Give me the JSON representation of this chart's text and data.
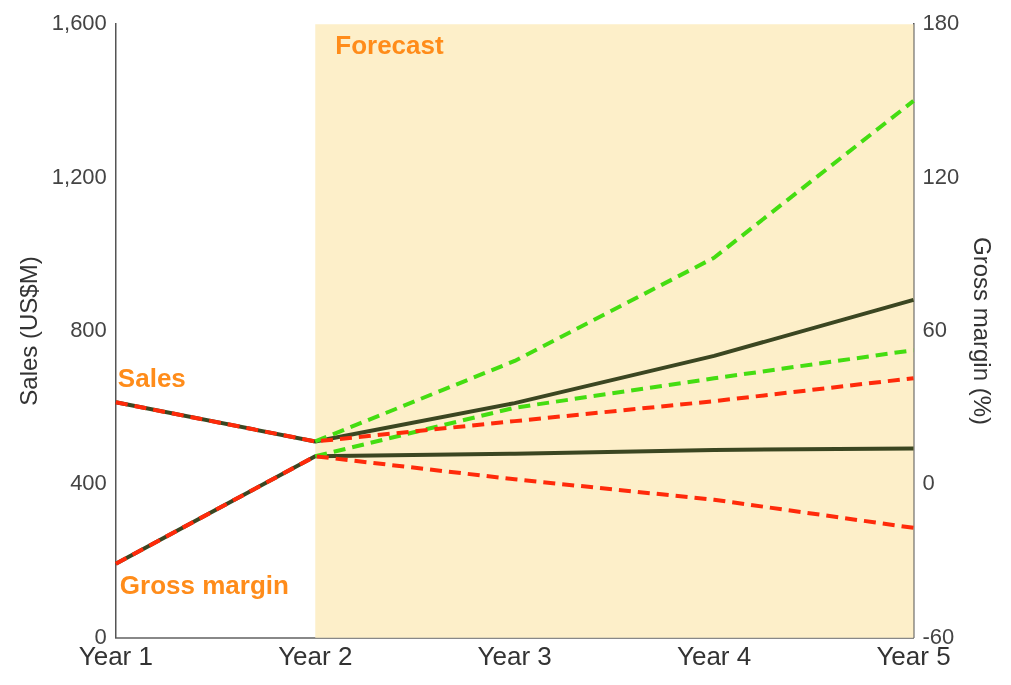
{
  "chart_data": {
    "type": "line",
    "ylabel": "Sales (US$M)",
    "y2label": "Gross margin (%)",
    "categories": [
      "Year 1",
      "Year 2",
      "Year 3",
      "Year 4",
      "Year 5"
    ],
    "series": [
      {
        "name": "Sales",
        "color": "#3b4621",
        "values": [
          614,
          512,
          612,
          735,
          881
        ],
        "line_style": "solid"
      },
      {
        "color": "#ff2a0a",
        "values": [
          614,
          512,
          565,
          617,
          677
        ],
        "line_style": "dashed"
      },
      {
        "color": "#44dd11",
        "values": [
          null,
          512,
          722,
          991,
          1400
        ],
        "line_style": "dashed"
      },
      {
        "name": "Gross margin",
        "color": "#3b4621",
        "values": [
          -31,
          11,
          12,
          13.5,
          14
        ],
        "axis": "y2",
        "line_style": "solid"
      },
      {
        "color": "#ff2a0a",
        "values": [
          -31,
          11,
          2,
          -6,
          -17
        ],
        "axis": "y2",
        "line_style": "dashed"
      },
      {
        "color": "#44dd11",
        "values": [
          null,
          11,
          30,
          41.5,
          52.5
        ],
        "axis": "y2",
        "line_style": "dashed"
      }
    ],
    "ylim": [
      0,
      1600
    ],
    "yticks": [
      0,
      400,
      800,
      {
        "value": 1200,
        "label": "1,200"
      },
      {
        "value": 1600,
        "label": "1,600"
      }
    ],
    "y2lim": [
      -60,
      180
    ],
    "y2ticks": [
      -60,
      0,
      60,
      120,
      180
    ],
    "bands": [
      {
        "axis": "x",
        "from": "Year 2",
        "to": "Year 5",
        "label": "Forecast",
        "color": "#fdefc9"
      }
    ],
    "grid": false,
    "legend": false,
    "marker": "none"
  }
}
